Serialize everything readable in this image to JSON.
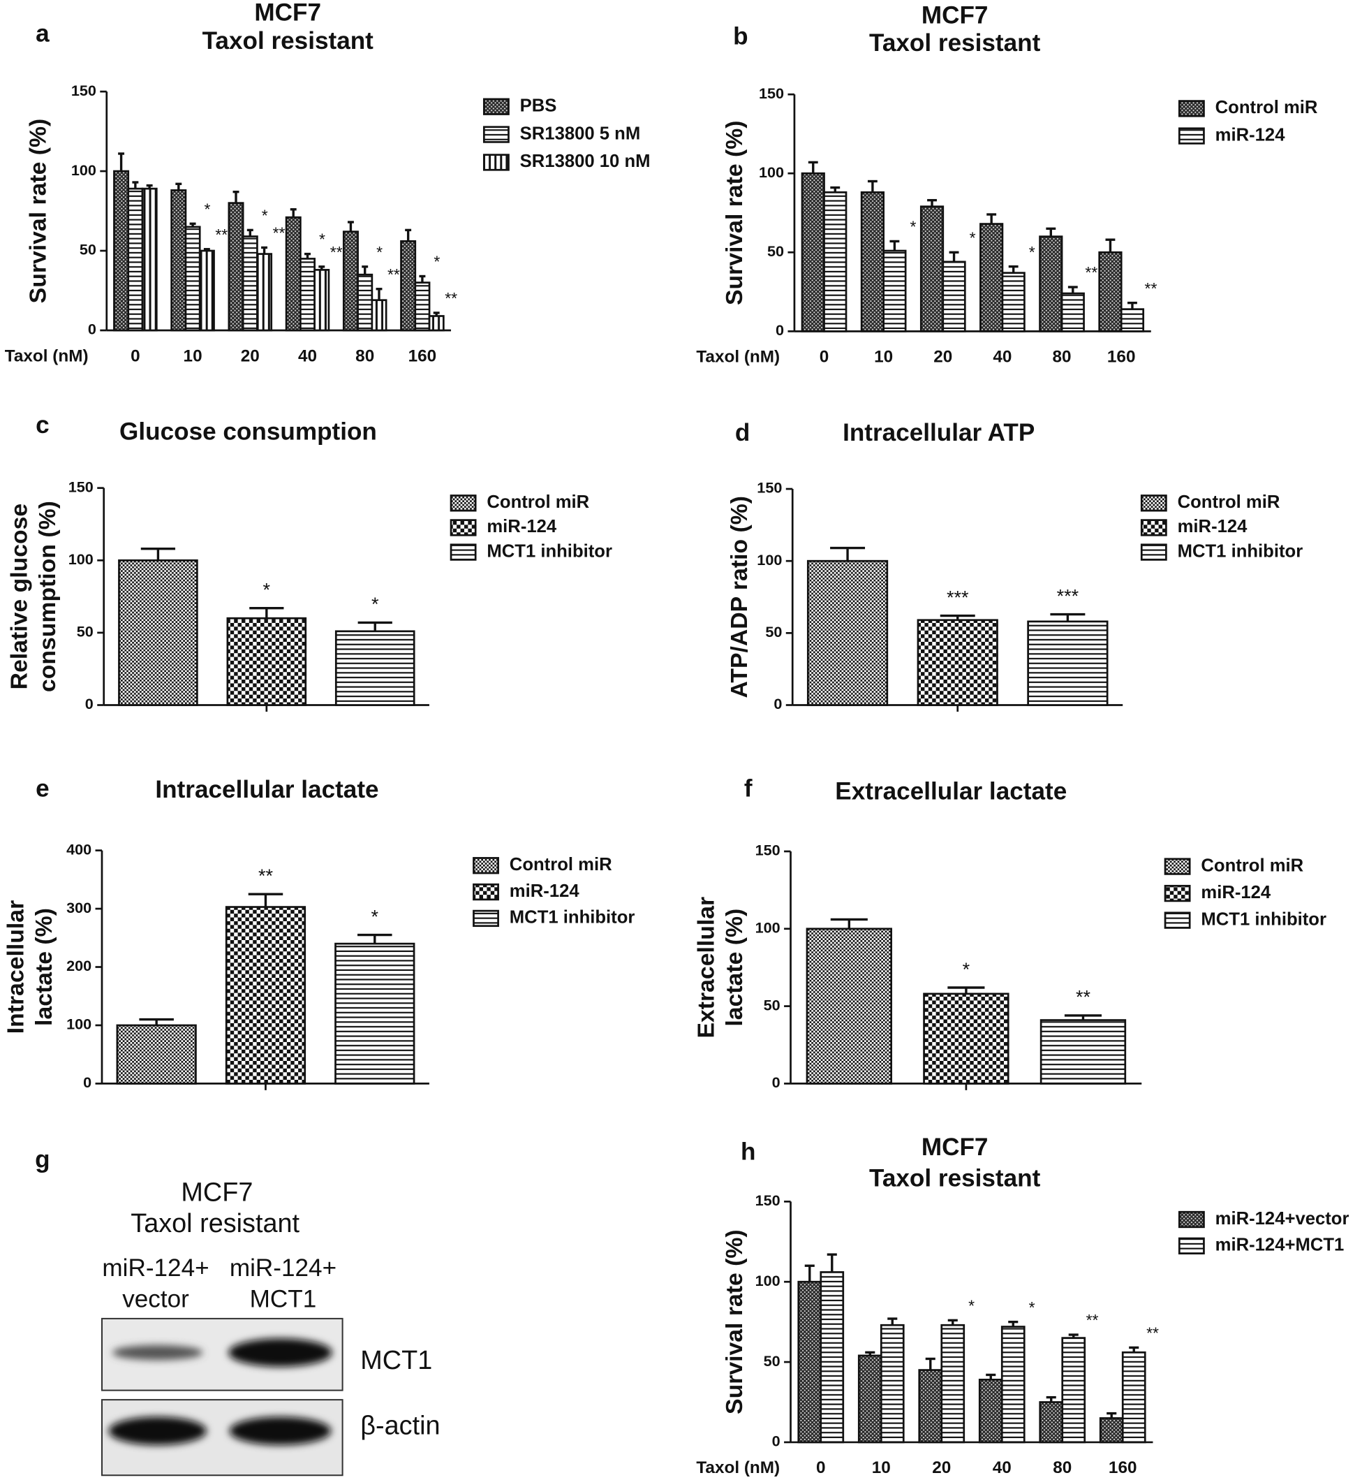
{
  "chart_data": [
    {
      "panel": "a",
      "type": "bar",
      "title": [
        "MCF7",
        "Taxol resistant"
      ],
      "ylabel": [
        "Survival rate (%)"
      ],
      "xlabel": "Taxol (nM)",
      "categories": [
        "0",
        "10",
        "20",
        "40",
        "80",
        "160"
      ],
      "ylim": [
        0,
        150
      ],
      "yticks": [
        0,
        50,
        100,
        150
      ],
      "series": [
        {
          "name": "PBS",
          "pattern": "dots",
          "values": [
            100,
            88,
            80,
            71,
            62,
            56
          ],
          "errors": [
            11,
            4,
            7,
            5,
            6,
            7
          ],
          "annotations": [
            null,
            null,
            null,
            null,
            null,
            null
          ]
        },
        {
          "name": "SR13800 5 nM",
          "pattern": "hstripe",
          "values": [
            89,
            65,
            59,
            45,
            35,
            30
          ],
          "errors": [
            4,
            2,
            4,
            3,
            5,
            4
          ],
          "annotations": [
            null,
            "*",
            "*",
            "*",
            "*",
            "*"
          ]
        },
        {
          "name": "SR13800 10 nM",
          "pattern": "vstripe",
          "values": [
            89,
            50,
            48,
            38,
            19,
            9
          ],
          "errors": [
            2,
            1,
            4,
            2,
            7,
            2
          ],
          "annotations": [
            null,
            "**",
            "**",
            "**",
            "**",
            "**"
          ]
        }
      ]
    },
    {
      "panel": "b",
      "type": "bar",
      "title": [
        "MCF7",
        "Taxol resistant"
      ],
      "ylabel": [
        "Survival rate (%)"
      ],
      "xlabel": "Taxol (nM)",
      "categories": [
        "0",
        "10",
        "20",
        "40",
        "80",
        "160"
      ],
      "ylim": [
        0,
        150
      ],
      "yticks": [
        0,
        50,
        100,
        150
      ],
      "series": [
        {
          "name": "Control miR",
          "pattern": "dots",
          "values": [
            100,
            88,
            79,
            68,
            60,
            50
          ],
          "errors": [
            7,
            7,
            4,
            6,
            5,
            8
          ],
          "annotations": [
            null,
            null,
            null,
            null,
            null,
            null
          ]
        },
        {
          "name": "miR-124",
          "pattern": "hstripe",
          "values": [
            88,
            51,
            44,
            37,
            24,
            14
          ],
          "errors": [
            3,
            6,
            6,
            4,
            4,
            4
          ],
          "annotations": [
            null,
            "*",
            "*",
            "*",
            "**",
            "**"
          ]
        }
      ]
    },
    {
      "panel": "c",
      "type": "bar",
      "title": [
        "Glucose consumption"
      ],
      "ylabel": [
        "Relative glucose",
        "consumption (%)"
      ],
      "categories": [
        null
      ],
      "ylim": [
        0,
        150
      ],
      "yticks": [
        0,
        50,
        100,
        150
      ],
      "series": [
        {
          "name": "Control miR",
          "pattern": "finechecker",
          "values": [
            100
          ],
          "errors": [
            8
          ],
          "annotations": [
            null
          ]
        },
        {
          "name": "miR-124",
          "pattern": "checker",
          "values": [
            60
          ],
          "errors": [
            7
          ],
          "annotations": [
            "*"
          ]
        },
        {
          "name": "MCT1 inhibitor",
          "pattern": "hstripe",
          "values": [
            51
          ],
          "errors": [
            6
          ],
          "annotations": [
            "*"
          ]
        }
      ]
    },
    {
      "panel": "d",
      "type": "bar",
      "title": [
        "Intracellular ATP"
      ],
      "ylabel": [
        "ATP/ADP ratio (%)"
      ],
      "categories": [
        null
      ],
      "ylim": [
        0,
        150
      ],
      "yticks": [
        0,
        50,
        100,
        150
      ],
      "series": [
        {
          "name": "Control miR",
          "pattern": "finechecker",
          "values": [
            100
          ],
          "errors": [
            9
          ],
          "annotations": [
            null
          ]
        },
        {
          "name": "miR-124",
          "pattern": "checker",
          "values": [
            59
          ],
          "errors": [
            3
          ],
          "annotations": [
            "***"
          ]
        },
        {
          "name": "MCT1 inhibitor",
          "pattern": "hstripe",
          "values": [
            58
          ],
          "errors": [
            5
          ],
          "annotations": [
            "***"
          ]
        }
      ]
    },
    {
      "panel": "e",
      "type": "bar",
      "title": [
        "Intracellular lactate"
      ],
      "ylabel": [
        "Intracellular",
        "lactate (%)"
      ],
      "categories": [
        null
      ],
      "ylim": [
        0,
        400
      ],
      "yticks": [
        0,
        100,
        200,
        300,
        400
      ],
      "series": [
        {
          "name": "Control miR",
          "pattern": "finechecker",
          "values": [
            100
          ],
          "errors": [
            10
          ],
          "annotations": [
            null
          ]
        },
        {
          "name": "miR-124",
          "pattern": "checker",
          "values": [
            303
          ],
          "errors": [
            22
          ],
          "annotations": [
            "**"
          ]
        },
        {
          "name": "MCT1 inhibitor",
          "pattern": "hstripe",
          "values": [
            240
          ],
          "errors": [
            15
          ],
          "annotations": [
            "*"
          ]
        }
      ]
    },
    {
      "panel": "f",
      "type": "bar",
      "title": [
        "Extracellular lactate"
      ],
      "ylabel": [
        "Extracellular",
        "lactate (%)"
      ],
      "categories": [
        null
      ],
      "ylim": [
        0,
        150
      ],
      "yticks": [
        0,
        50,
        100,
        150
      ],
      "series": [
        {
          "name": "Control miR",
          "pattern": "finechecker",
          "values": [
            100
          ],
          "errors": [
            6
          ],
          "annotations": [
            null
          ]
        },
        {
          "name": "miR-124",
          "pattern": "checker",
          "values": [
            58
          ],
          "errors": [
            4
          ],
          "annotations": [
            "*"
          ]
        },
        {
          "name": "MCT1 inhibitor",
          "pattern": "hstripe",
          "values": [
            41
          ],
          "errors": [
            3
          ],
          "annotations": [
            "**"
          ]
        }
      ]
    },
    {
      "panel": "h",
      "type": "bar",
      "title": [
        "MCF7",
        "Taxol resistant"
      ],
      "ylabel": [
        "Survival rate (%)"
      ],
      "xlabel": "Taxol (nM)",
      "categories": [
        "0",
        "10",
        "20",
        "40",
        "80",
        "160"
      ],
      "ylim": [
        0,
        150
      ],
      "yticks": [
        0,
        50,
        100,
        150
      ],
      "series": [
        {
          "name": "miR-124+vector",
          "pattern": "dots",
          "values": [
            100,
            54,
            45,
            39,
            25,
            15
          ],
          "errors": [
            10,
            2,
            7,
            3,
            3,
            3
          ],
          "annotations": [
            null,
            null,
            null,
            null,
            null,
            null
          ]
        },
        {
          "name": "miR-124+MCT1",
          "pattern": "hstripe",
          "values": [
            106,
            73,
            73,
            72,
            65,
            56
          ],
          "errors": [
            11,
            4,
            3,
            3,
            2,
            3
          ],
          "annotations": [
            null,
            null,
            "*",
            "*",
            "**",
            "**"
          ]
        }
      ]
    }
  ],
  "panel_g": {
    "panel": "g",
    "title": [
      "MCF7",
      "Taxol resistant"
    ],
    "lanes": [
      [
        "miR-124+",
        "vector"
      ],
      [
        "miR-124+",
        "MCT1"
      ]
    ],
    "blots": [
      "MCT1",
      "β-actin"
    ]
  }
}
